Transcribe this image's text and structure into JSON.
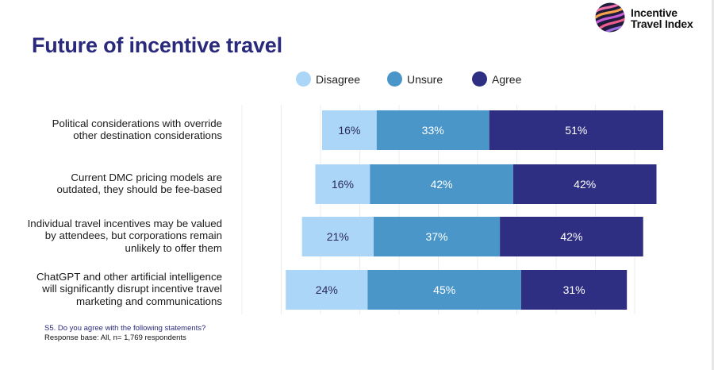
{
  "header": {
    "title": "Future of incentive travel",
    "logo_line1": "Incentive",
    "logo_line2": "Travel Index"
  },
  "legend": {
    "items": [
      {
        "label": "Disagree",
        "color": "#acd6f7"
      },
      {
        "label": "Unsure",
        "color": "#4a96c8"
      },
      {
        "label": "Agree",
        "color": "#2e2e82"
      }
    ]
  },
  "chart_data": {
    "type": "bar",
    "orientation": "horizontal-diverging-stacked",
    "categories": [
      [
        "Political considerations with override",
        "other destination considerations"
      ],
      [
        "Current DMC pricing models are",
        "outdated, they should be fee-based"
      ],
      [
        "Individual travel incentives may be valued",
        "by attendees, but corporations remain",
        "unlikely to offer them"
      ],
      [
        "ChatGPT and other artificial intelligence",
        "will significantly disrupt incentive travel",
        "marketing and communications"
      ]
    ],
    "series": [
      {
        "name": "Disagree",
        "values": [
          16,
          16,
          21,
          24
        ],
        "color": "#acd6f7"
      },
      {
        "name": "Unsure",
        "values": [
          33,
          42,
          37,
          45
        ],
        "color": "#4a96c8"
      },
      {
        "name": "Agree",
        "values": [
          51,
          42,
          42,
          31
        ],
        "color": "#2e2e82"
      }
    ],
    "labels": [
      [
        "16%",
        "33%",
        "51%"
      ],
      [
        "16%",
        "42%",
        "42%"
      ],
      [
        "21%",
        "37%",
        "42%"
      ],
      [
        "24%",
        "45%",
        "31%"
      ]
    ],
    "unit": "%",
    "grid": true,
    "legend_position": "top"
  },
  "footer": {
    "question": "S5. Do you agree with the following statements?",
    "base": "Response base: All, n= 1,769 respondents"
  }
}
